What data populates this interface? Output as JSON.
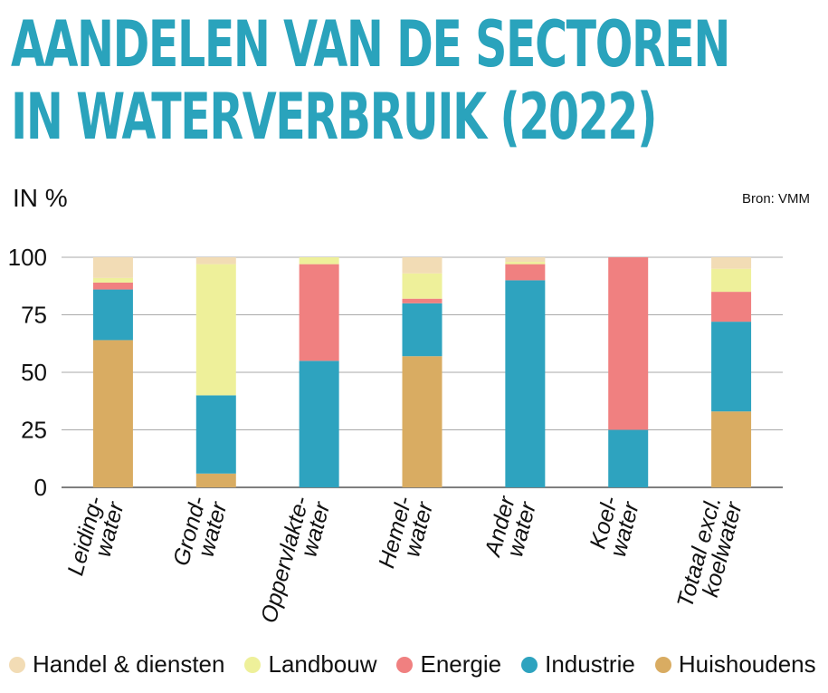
{
  "title_lines": [
    "AANDELEN VAN DE SECTOREN",
    "IN WATERVERBRUIK (2022)"
  ],
  "unit_label": "IN %",
  "source_label": "Bron: VMM",
  "colors": {
    "title": "#2aa3bc",
    "Handel & diensten": "#f2dcb5",
    "Landbouw": "#eef09a",
    "Energie": "#f08080",
    "Industrie": "#2ea3bf",
    "Huishoudens": "#d9ac62"
  },
  "chart_data": {
    "type": "bar",
    "stacked": true,
    "categories": [
      [
        "Leiding-",
        "water"
      ],
      [
        "Grond-",
        "water"
      ],
      [
        "Oppervlakte-",
        "water"
      ],
      [
        "Hemel-",
        "water"
      ],
      [
        "Ander",
        "water"
      ],
      [
        "Koel-",
        "water"
      ],
      [
        "Totaal excl.",
        "koelwater"
      ]
    ],
    "series": [
      {
        "name": "Huishoudens",
        "values": [
          64,
          6,
          0,
          57,
          0,
          0,
          33
        ]
      },
      {
        "name": "Industrie",
        "values": [
          22,
          34,
          55,
          23,
          90,
          25,
          39
        ]
      },
      {
        "name": "Energie",
        "values": [
          3,
          0,
          42,
          2,
          7,
          75,
          13
        ]
      },
      {
        "name": "Landbouw",
        "values": [
          2,
          57,
          3,
          11,
          1,
          0,
          10
        ]
      },
      {
        "name": "Handel & diensten",
        "values": [
          9,
          3,
          0,
          7,
          2,
          0,
          5
        ]
      }
    ],
    "ylim": [
      0,
      100
    ],
    "yticks": [
      0,
      25,
      50,
      75,
      100
    ],
    "grid": true,
    "legend_order": [
      "Handel & diensten",
      "Landbouw",
      "Energie",
      "Industrie",
      "Huishoudens"
    ],
    "legend_position": "bottom"
  }
}
